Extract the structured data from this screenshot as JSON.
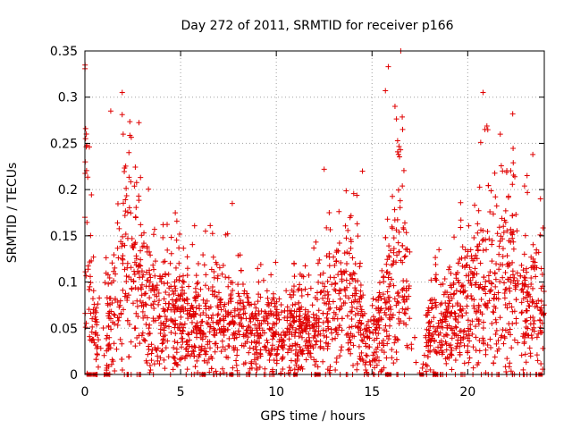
{
  "chart_data": {
    "type": "scatter",
    "title": "Day 272 of 2011, SRMTID for receiver p166",
    "xlabel": "GPS time / hours",
    "ylabel": "SRMTID / TECUs",
    "xlim": [
      0,
      24
    ],
    "ylim": [
      0,
      0.35
    ],
    "x_ticks": [
      0,
      5,
      10,
      15,
      20
    ],
    "x_tick_labels": [
      "0",
      "5",
      "10",
      "15",
      "20"
    ],
    "y_ticks": [
      0,
      0.05,
      0.1,
      0.15,
      0.2,
      0.25,
      0.3,
      0.35
    ],
    "y_tick_labels": [
      "0",
      "0.05",
      "0.1",
      "0.15",
      "0.2",
      "0.25",
      "0.3",
      "0.35"
    ],
    "grid": true,
    "legend": "none",
    "marker": "+",
    "color": "#e00000",
    "series": [
      {
        "name": "SRMTID",
        "density_profile": [
          [
            0.0,
            0.17
          ],
          [
            0.2,
            0.1
          ],
          [
            0.5,
            0.05
          ],
          [
            1.0,
            0.04
          ],
          [
            1.5,
            0.06
          ],
          [
            2.0,
            0.11
          ],
          [
            2.5,
            0.13
          ],
          [
            3.0,
            0.09
          ],
          [
            4.0,
            0.07
          ],
          [
            5.0,
            0.06
          ],
          [
            6.0,
            0.06
          ],
          [
            7.0,
            0.06
          ],
          [
            8.0,
            0.05
          ],
          [
            9.0,
            0.045
          ],
          [
            10.0,
            0.045
          ],
          [
            11.0,
            0.045
          ],
          [
            12.0,
            0.05
          ],
          [
            13.0,
            0.08
          ],
          [
            14.0,
            0.09
          ],
          [
            14.8,
            0.03
          ],
          [
            15.5,
            0.06
          ],
          [
            16.5,
            0.12
          ],
          [
            17.5,
            0.0
          ],
          [
            18.0,
            0.05
          ],
          [
            19.0,
            0.05
          ],
          [
            20.0,
            0.08
          ],
          [
            21.0,
            0.1
          ],
          [
            22.0,
            0.1
          ],
          [
            23.0,
            0.08
          ],
          [
            24.0,
            0.07
          ]
        ],
        "n_points": 2600,
        "outliers": [
          {
            "x": 0.0,
            "y": 0.17
          },
          {
            "x": 1.35,
            "y": 0.285
          },
          {
            "x": 1.95,
            "y": 0.305
          },
          {
            "x": 2.0,
            "y": 0.26
          },
          {
            "x": 2.3,
            "y": 0.24
          },
          {
            "x": 6.3,
            "y": 0.155
          },
          {
            "x": 7.7,
            "y": 0.185
          },
          {
            "x": 12.5,
            "y": 0.222
          },
          {
            "x": 14.5,
            "y": 0.22
          },
          {
            "x": 15.7,
            "y": 0.307
          },
          {
            "x": 15.85,
            "y": 0.333
          },
          {
            "x": 16.2,
            "y": 0.29
          },
          {
            "x": 16.5,
            "y": 0.35
          },
          {
            "x": 16.6,
            "y": 0.265
          },
          {
            "x": 20.8,
            "y": 0.305
          },
          {
            "x": 20.9,
            "y": 0.265
          },
          {
            "x": 21.7,
            "y": 0.26
          },
          {
            "x": 22.35,
            "y": 0.282
          },
          {
            "x": 23.4,
            "y": 0.238
          },
          {
            "x": 23.8,
            "y": 0.19
          }
        ],
        "zero_points_x": [
          0.2,
          0.25,
          0.5,
          1.15,
          6.2,
          7.65,
          11.0,
          12.1,
          12.2,
          15.8,
          15.9,
          17.6,
          18.3,
          23.8
        ]
      }
    ]
  }
}
